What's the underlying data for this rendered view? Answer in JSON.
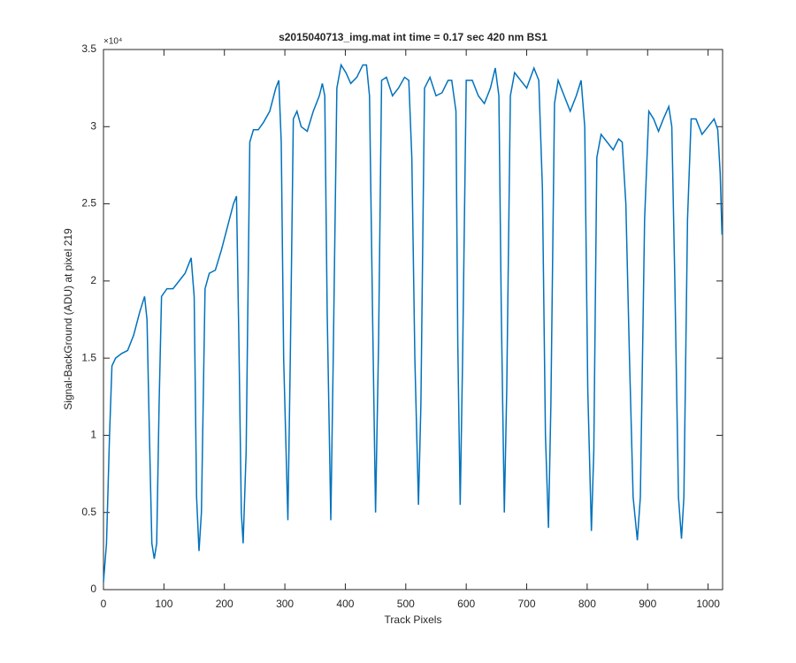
{
  "chart_data": {
    "type": "line",
    "title": "s2015040713_img.mat int time = 0.17 sec  420 nm BS1",
    "x_label": "Track Pixels",
    "y_label": "Signal-BackGround (ADU) at pixel 219",
    "y_exponent_label": "×10⁴",
    "xlim": [
      0,
      1024
    ],
    "xticks": [
      0,
      100,
      200,
      300,
      400,
      500,
      600,
      700,
      800,
      900,
      1000
    ],
    "ylim": [
      0,
      3.5
    ],
    "yticks": [
      0,
      0.5,
      1,
      1.5,
      2,
      2.5,
      3,
      3.5
    ],
    "series": [
      {
        "color": "#0072bd",
        "x": [
          0,
          5,
          10,
          14,
          20,
          30,
          40,
          50,
          60,
          68,
          72,
          76,
          80,
          84,
          88,
          92,
          96,
          105,
          115,
          125,
          135,
          145,
          150,
          154,
          158,
          162,
          168,
          175,
          185,
          195,
          205,
          215,
          220,
          224,
          228,
          231,
          236,
          242,
          248,
          256,
          265,
          275,
          285,
          290,
          294,
          298,
          305,
          309,
          314,
          320,
          327,
          337,
          347,
          357,
          362,
          366,
          370,
          376,
          380,
          386,
          393,
          401,
          409,
          419,
          429,
          435,
          440,
          445,
          450,
          455,
          460,
          468,
          478,
          488,
          498,
          505,
          510,
          515,
          521,
          525,
          531,
          540,
          550,
          560,
          570,
          576,
          583,
          586,
          590,
          594,
          600,
          610,
          620,
          630,
          640,
          648,
          654,
          658,
          663,
          667,
          673,
          680,
          690,
          700,
          712,
          720,
          726,
          731,
          736,
          740,
          746,
          752,
          762,
          772,
          782,
          790,
          796,
          801,
          807,
          811,
          816,
          823,
          833,
          843,
          852,
          858,
          864,
          870,
          876,
          883,
          888,
          895,
          902,
          910,
          918,
          926,
          935,
          940,
          945,
          951,
          956,
          960,
          966,
          972,
          980,
          990,
          1000,
          1010,
          1016,
          1020,
          1023
        ],
        "values": [
          0.05,
          0.3,
          1.0,
          1.45,
          1.5,
          1.53,
          1.55,
          1.65,
          1.8,
          1.9,
          1.75,
          1.0,
          0.3,
          0.2,
          0.3,
          1.2,
          1.9,
          1.95,
          1.95,
          2.0,
          2.05,
          2.15,
          1.9,
          0.6,
          0.25,
          0.5,
          1.95,
          2.05,
          2.07,
          2.2,
          2.35,
          2.5,
          2.55,
          1.6,
          0.5,
          0.3,
          0.9,
          2.9,
          2.98,
          2.98,
          3.03,
          3.1,
          3.25,
          3.3,
          2.9,
          1.5,
          0.45,
          1.5,
          3.05,
          3.1,
          3.0,
          2.97,
          3.1,
          3.2,
          3.28,
          3.2,
          1.8,
          0.45,
          1.5,
          3.25,
          3.4,
          3.35,
          3.28,
          3.32,
          3.4,
          3.4,
          3.2,
          1.8,
          0.5,
          1.6,
          3.3,
          3.32,
          3.2,
          3.25,
          3.32,
          3.3,
          2.8,
          1.5,
          0.55,
          1.2,
          3.25,
          3.32,
          3.2,
          3.22,
          3.3,
          3.3,
          3.1,
          1.6,
          0.55,
          1.5,
          3.3,
          3.3,
          3.2,
          3.15,
          3.25,
          3.38,
          3.2,
          1.8,
          0.5,
          1.3,
          3.2,
          3.35,
          3.3,
          3.25,
          3.38,
          3.3,
          2.6,
          1.0,
          0.4,
          1.2,
          3.15,
          3.3,
          3.2,
          3.1,
          3.2,
          3.3,
          3.0,
          1.3,
          0.38,
          0.9,
          2.8,
          2.95,
          2.9,
          2.85,
          2.92,
          2.9,
          2.5,
          1.5,
          0.6,
          0.32,
          0.6,
          2.4,
          3.1,
          3.05,
          2.97,
          3.05,
          3.13,
          3.0,
          2.0,
          0.6,
          0.33,
          0.6,
          2.4,
          3.05,
          3.05,
          2.95,
          3.0,
          3.05,
          2.98,
          2.7,
          2.3
        ]
      }
    ]
  }
}
